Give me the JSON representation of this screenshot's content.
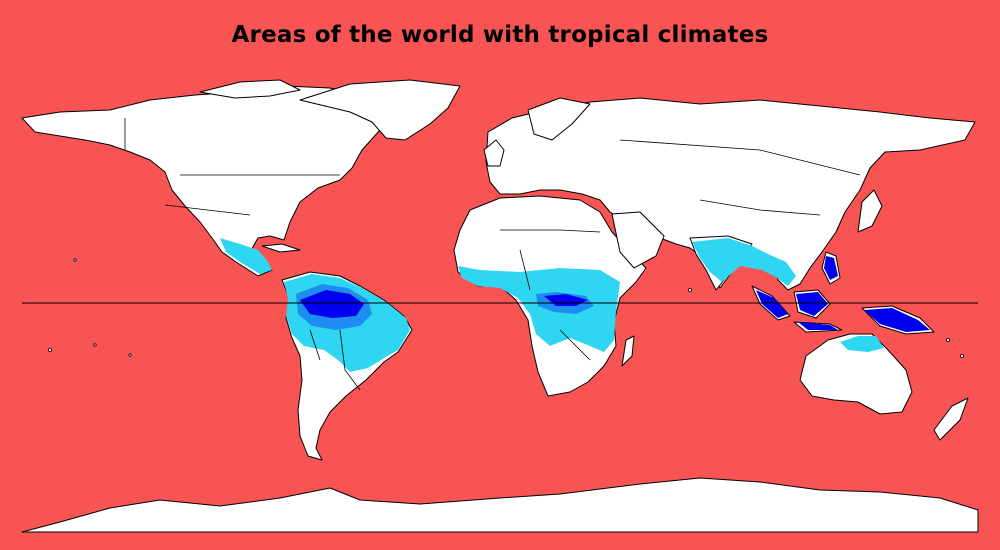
{
  "title": "Areas of the world with tropical climates",
  "colors": {
    "ocean": "#f95454",
    "land": "#ffffff",
    "tropical_light": "#2ed6f2",
    "tropical_medium": "#1e8df0",
    "tropical_dark": "#0000ee"
  }
}
